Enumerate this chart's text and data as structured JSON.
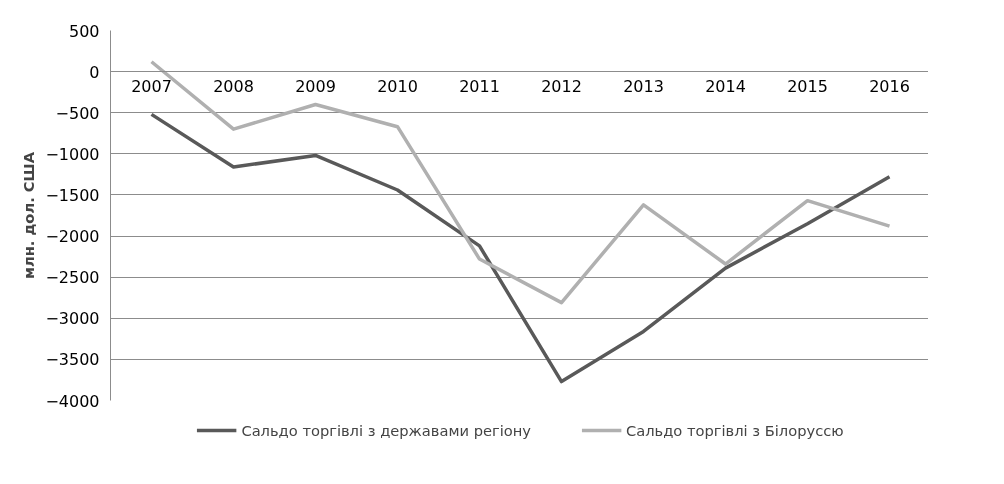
{
  "chart_data": {
    "type": "line",
    "ylabel": "млн. дол. США",
    "categories": [
      "2007",
      "2008",
      "2009",
      "2010",
      "2011",
      "2012",
      "2013",
      "2014",
      "2015",
      "2016"
    ],
    "series": [
      {
        "name": "Сальдо торгівлі з державами регіону",
        "color": "#595959",
        "values": [
          -520,
          -1160,
          -1020,
          -1440,
          -2120,
          -3770,
          -3160,
          -2390,
          -1850,
          -1280
        ]
      },
      {
        "name": "Сальдо торгівлі з Білоруссю",
        "color": "#b0b0b0",
        "values": [
          120,
          -700,
          -400,
          -670,
          -2280,
          -2810,
          -1620,
          -2340,
          -1570,
          -1880
        ]
      }
    ],
    "ylim": [
      -4000,
      500
    ],
    "yticks": [
      -4000,
      -3500,
      -3000,
      -2500,
      -2000,
      -1500,
      -1000,
      -500,
      0,
      500
    ],
    "grid": "y",
    "legend": "bottom",
    "marker": "none",
    "line_style": "solid"
  }
}
